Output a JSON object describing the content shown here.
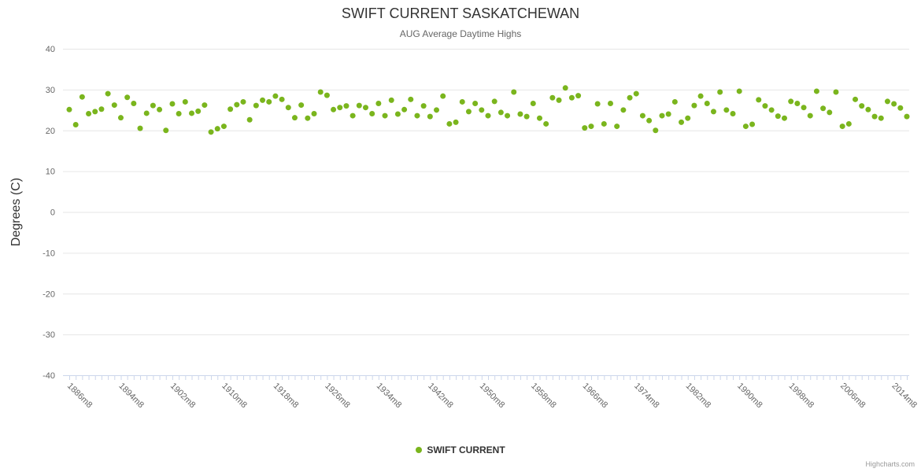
{
  "chart": {
    "title": "SWIFT CURRENT SASKATCHEWAN",
    "subtitle": "AUG Average Daytime Highs",
    "legend_label": "SWIFT CURRENT",
    "credits": "Highcharts.com"
  },
  "chart_data": {
    "type": "scatter",
    "title": "SWIFT CURRENT SASKATCHEWAN",
    "subtitle": "AUG Average Daytime Highs",
    "xlabel": "",
    "ylabel": "Degrees (C)",
    "ylim": [
      -40,
      40
    ],
    "ytick_step": 10,
    "grid": "horizontal",
    "legend_position": "bottom",
    "x_start": 1886,
    "x_end": 2016,
    "x_step": 1,
    "xtick_interval": 8,
    "xtick_suffix": "m8",
    "marker_color": "#7ab51d",
    "axis_color": "#ccd6eb",
    "grid_color": "#e6e6e6",
    "series": [
      {
        "name": "SWIFT CURRENT",
        "color": "#7ab51d",
        "values": [
          25.1,
          21.4,
          28.2,
          24.1,
          24.6,
          25.2,
          29.0,
          26.2,
          23.1,
          28.1,
          26.6,
          20.5,
          24.2,
          26.1,
          25.1,
          20.0,
          26.5,
          24.1,
          27.0,
          24.2,
          24.7,
          26.2,
          19.6,
          20.4,
          21.0,
          25.2,
          26.3,
          27.0,
          22.6,
          26.1,
          27.4,
          27.0,
          28.4,
          27.6,
          25.6,
          23.1,
          26.2,
          23.0,
          24.1,
          29.4,
          28.6,
          25.1,
          25.6,
          26.0,
          23.6,
          26.1,
          25.6,
          24.1,
          26.6,
          23.6,
          27.4,
          24.0,
          25.1,
          27.6,
          23.6,
          26.0,
          23.4,
          25.0,
          28.4,
          21.6,
          22.0,
          27.0,
          24.6,
          26.6,
          25.0,
          23.6,
          27.1,
          24.4,
          23.6,
          29.4,
          24.0,
          23.4,
          26.6,
          23.0,
          21.6,
          28.0,
          27.4,
          30.4,
          28.0,
          28.5,
          20.6,
          21.0,
          26.5,
          21.6,
          26.6,
          21.0,
          25.0,
          28.0,
          29.0,
          23.6,
          22.4,
          20.0,
          23.6,
          24.0,
          27.0,
          22.0,
          23.0,
          26.1,
          28.4,
          26.6,
          24.6,
          29.4,
          25.0,
          24.1,
          29.6,
          21.0,
          21.5,
          27.5,
          26.0,
          25.0,
          23.5,
          23.0,
          27.1,
          26.6,
          25.6,
          23.6,
          29.6,
          25.4,
          24.4,
          29.4,
          21.0,
          21.6,
          27.6,
          26.0,
          25.1,
          23.4,
          23.0,
          27.1,
          26.5,
          25.5,
          23.4
        ]
      }
    ]
  }
}
